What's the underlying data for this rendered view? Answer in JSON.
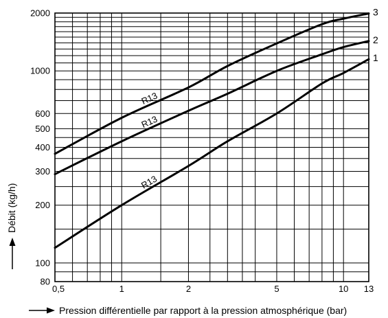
{
  "chart_data": {
    "type": "line",
    "xlabel": "Pression différentielle par rapport à la pression atmosphérique (bar)",
    "ylabel": "Débit (kg/h)",
    "xscale": "log",
    "yscale": "log",
    "xlim": [
      0.5,
      13
    ],
    "ylim": [
      80,
      2000
    ],
    "x_ticks": [
      {
        "v": 0.5,
        "label": "0,5"
      },
      {
        "v": 1,
        "label": "1"
      },
      {
        "v": 2,
        "label": "2"
      },
      {
        "v": 5,
        "label": "5"
      },
      {
        "v": 10,
        "label": "10"
      },
      {
        "v": 13,
        "label": "13"
      }
    ],
    "y_ticks": [
      {
        "v": 80,
        "label": "80"
      },
      {
        "v": 100,
        "label": "100"
      },
      {
        "v": 200,
        "label": "200"
      },
      {
        "v": 300,
        "label": "300"
      },
      {
        "v": 400,
        "label": "400"
      },
      {
        "v": 500,
        "label": "500"
      },
      {
        "v": 600,
        "label": "600"
      },
      {
        "v": 1000,
        "label": "1000"
      },
      {
        "v": 2000,
        "label": "2000"
      }
    ],
    "x_grid": [
      0.5,
      0.6,
      0.7,
      0.8,
      0.9,
      1,
      1.5,
      2,
      2.5,
      3,
      3.5,
      4,
      5,
      6,
      7,
      8,
      9,
      10,
      13
    ],
    "y_grid": [
      80,
      90,
      100,
      150,
      200,
      250,
      300,
      350,
      400,
      450,
      500,
      600,
      700,
      800,
      900,
      1000,
      1100,
      1200,
      1300,
      1400,
      1500,
      1600,
      1700,
      1800,
      1900,
      2000
    ],
    "grid": true,
    "series": [
      {
        "name": "1",
        "color": "#000000",
        "x": [
          0.5,
          1,
          2,
          3,
          5,
          8,
          10,
          13
        ],
        "y": [
          120,
          200,
          320,
          430,
          600,
          860,
          975,
          1150
        ]
      },
      {
        "name": "2",
        "color": "#000000",
        "x": [
          0.5,
          1,
          2,
          3,
          5,
          8,
          10,
          13
        ],
        "y": [
          290,
          430,
          620,
          760,
          1000,
          1220,
          1330,
          1430
        ]
      },
      {
        "name": "3",
        "color": "#000000",
        "x": [
          0.5,
          1,
          2,
          3,
          5,
          8,
          10,
          13
        ],
        "y": [
          370,
          570,
          820,
          1060,
          1390,
          1750,
          1870,
          1990
        ]
      }
    ],
    "annotations": [
      {
        "text": "R13",
        "series": "3",
        "x": 1.35
      },
      {
        "text": "R13",
        "series": "2",
        "x": 1.35
      },
      {
        "text": "R13",
        "series": "1",
        "x": 1.35
      }
    ]
  }
}
